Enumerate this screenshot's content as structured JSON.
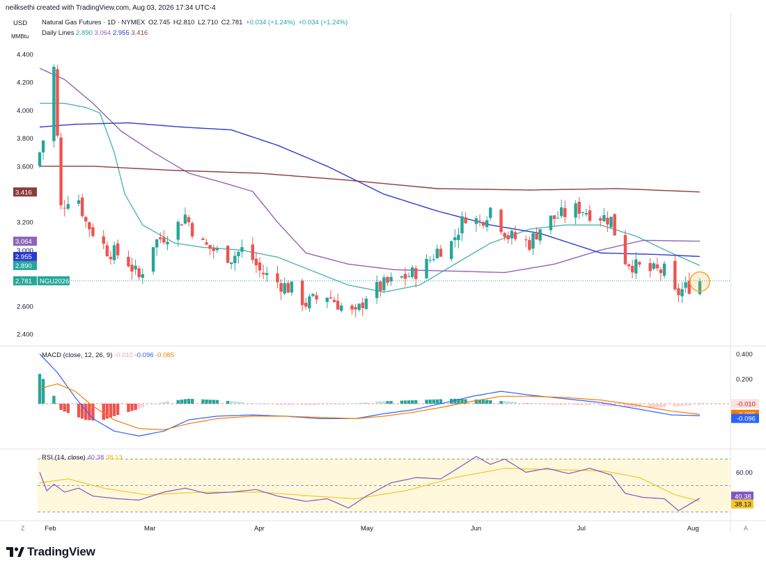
{
  "header": {
    "credit": "neilksethi created with TradingView.com, Aug 03, 2026 17:34 UTC-4",
    "currency": "USD",
    "unit": "MMBtu",
    "brand": "TradingView",
    "corner_left": "Z",
    "corner_right": "A"
  },
  "ticker": {
    "name": "Natural Gas Futures · 1D · NYMEX",
    "open": "O2.745",
    "high": "H2.810",
    "low": "L2.710",
    "close": "C2.781",
    "change": "+0.034 (+1.24%)",
    "change2": "+0.034 (+1.24%)",
    "ma_label": "Daily Lines",
    "ma_values": [
      "2.890",
      "3.064",
      "2.955",
      "3.416"
    ]
  },
  "colors": {
    "up": "#26a69a",
    "down": "#ef5350",
    "ma_teal": "#4db6ac",
    "ma_purple": "#8e63b8",
    "ma_blue": "#2b3ad1",
    "ma_maroon": "#8b3a3a",
    "macd_line": "#2962ff",
    "signal_line": "#f57c00",
    "rsi_line": "#7e57c2",
    "rsi_ma": "#f5c52a",
    "rsi_band": "#fff8dc",
    "highlight": "#f7a530"
  },
  "chart_data": [
    {
      "type": "candlestick",
      "title": "Natural Gas Futures · 1D · NYMEX",
      "ylim": [
        2.35,
        4.45
      ],
      "y_ticks": [
        "4.400",
        "4.200",
        "4.000",
        "3.800",
        "3.600",
        "3.200",
        "3.000",
        "2.600",
        "2.400"
      ],
      "x_ticks": [
        "Feb",
        "Mar",
        "Apr",
        "May",
        "Jun",
        "Jul",
        "Aug"
      ],
      "x_tick_dates": [
        "2026-02-01",
        "2026-03-01",
        "2026-04-01",
        "2026-05-01",
        "2026-06-01",
        "2026-07-01",
        "2026-08-01"
      ],
      "date_range": [
        "2026-01-29",
        "2026-08-03"
      ],
      "last_price": 2.781,
      "price_labels": [
        {
          "text": "3.416",
          "value": 3.416,
          "color": "#8b3a3a"
        },
        {
          "text": "3.064",
          "value": 3.064,
          "color": "#8e63b8"
        },
        {
          "text": "2.955",
          "value": 2.955,
          "color": "#2b3ad1"
        },
        {
          "text": "2.890",
          "value": 2.89,
          "color": "#26a69a"
        },
        {
          "text": "2.781",
          "value": 2.781,
          "color": "#26a69a"
        }
      ],
      "last_symbol": "NGU2026",
      "anchors": [
        [
          "2026-01-29",
          3.7
        ],
        [
          "2026-01-31",
          3.88
        ],
        [
          "2026-02-02",
          4.3
        ],
        [
          "2026-02-04",
          3.3
        ],
        [
          "2026-02-08",
          3.45
        ],
        [
          "2026-02-11",
          3.2
        ],
        [
          "2026-02-17",
          3.0
        ],
        [
          "2026-02-22",
          2.95
        ],
        [
          "2026-02-26",
          2.8
        ],
        [
          "2026-03-02",
          3.05
        ],
        [
          "2026-03-08",
          3.15
        ],
        [
          "2026-03-11",
          3.25
        ],
        [
          "2026-03-15",
          3.05
        ],
        [
          "2026-03-19",
          3.0
        ],
        [
          "2026-03-24",
          2.95
        ],
        [
          "2026-03-28",
          3.02
        ],
        [
          "2026-04-01",
          2.85
        ],
        [
          "2026-04-06",
          2.77
        ],
        [
          "2026-04-10",
          2.72
        ],
        [
          "2026-04-14",
          2.62
        ],
        [
          "2026-04-20",
          2.68
        ],
        [
          "2026-04-24",
          2.6
        ],
        [
          "2026-04-28",
          2.53
        ],
        [
          "2026-05-01",
          2.68
        ],
        [
          "2026-05-06",
          2.75
        ],
        [
          "2026-05-11",
          2.8
        ],
        [
          "2026-05-14",
          2.83
        ],
        [
          "2026-05-18",
          2.9
        ],
        [
          "2026-05-21",
          3.0
        ],
        [
          "2026-05-25",
          3.05
        ],
        [
          "2026-05-29",
          3.25
        ],
        [
          "2026-06-02",
          3.2
        ],
        [
          "2026-06-05",
          3.3
        ],
        [
          "2026-06-10",
          3.1
        ],
        [
          "2026-06-16",
          3.05
        ],
        [
          "2026-06-20",
          3.2
        ],
        [
          "2026-06-25",
          3.25
        ],
        [
          "2026-06-30",
          3.3
        ],
        [
          "2026-07-05",
          3.25
        ],
        [
          "2026-07-09",
          3.22
        ],
        [
          "2026-07-12",
          2.95
        ],
        [
          "2026-07-16",
          2.88
        ],
        [
          "2026-07-20",
          2.85
        ],
        [
          "2026-07-24",
          2.85
        ],
        [
          "2026-07-27",
          2.68
        ],
        [
          "2026-07-30",
          2.73
        ],
        [
          "2026-08-03",
          2.781
        ]
      ],
      "series": [
        {
          "name": "Daily Lines 2.890",
          "color": "#4db6ac",
          "points": [
            [
              "2026-01-29",
              4.05
            ],
            [
              "2026-02-05",
              4.05
            ],
            [
              "2026-02-11",
              4.02
            ],
            [
              "2026-02-15",
              3.98
            ],
            [
              "2026-02-19",
              3.7
            ],
            [
              "2026-02-22",
              3.4
            ],
            [
              "2026-02-27",
              3.18
            ],
            [
              "2026-03-08",
              3.05
            ],
            [
              "2026-03-16",
              3.02
            ],
            [
              "2026-03-27",
              3.0
            ],
            [
              "2026-04-06",
              2.95
            ],
            [
              "2026-04-16",
              2.85
            ],
            [
              "2026-04-26",
              2.75
            ],
            [
              "2026-05-06",
              2.7
            ],
            [
              "2026-05-16",
              2.75
            ],
            [
              "2026-05-26",
              2.9
            ],
            [
              "2026-06-05",
              3.05
            ],
            [
              "2026-06-16",
              3.15
            ],
            [
              "2026-06-26",
              3.18
            ],
            [
              "2026-07-06",
              3.18
            ],
            [
              "2026-07-16",
              3.1
            ],
            [
              "2026-07-26",
              2.98
            ],
            [
              "2026-08-03",
              2.89
            ]
          ]
        },
        {
          "name": "Daily Lines 3.064",
          "color": "#8e63b8",
          "points": [
            [
              "2026-01-29",
              4.3
            ],
            [
              "2026-02-05",
              4.22
            ],
            [
              "2026-02-13",
              4.05
            ],
            [
              "2026-02-21",
              3.85
            ],
            [
              "2026-03-02",
              3.7
            ],
            [
              "2026-03-12",
              3.55
            ],
            [
              "2026-03-22",
              3.48
            ],
            [
              "2026-03-30",
              3.42
            ],
            [
              "2026-04-06",
              3.2
            ],
            [
              "2026-04-14",
              2.98
            ],
            [
              "2026-04-26",
              2.9
            ],
            [
              "2026-05-09",
              2.86
            ],
            [
              "2026-05-26",
              2.85
            ],
            [
              "2026-06-09",
              2.84
            ],
            [
              "2026-06-23",
              2.9
            ],
            [
              "2026-07-06",
              3.0
            ],
            [
              "2026-07-18",
              3.07
            ],
            [
              "2026-08-03",
              3.064
            ]
          ]
        },
        {
          "name": "Daily Lines 2.955",
          "color": "#2b3ad1",
          "points": [
            [
              "2026-01-29",
              3.88
            ],
            [
              "2026-02-08",
              3.9
            ],
            [
              "2026-02-23",
              3.91
            ],
            [
              "2026-03-10",
              3.88
            ],
            [
              "2026-03-24",
              3.86
            ],
            [
              "2026-04-06",
              3.75
            ],
            [
              "2026-04-20",
              3.6
            ],
            [
              "2026-05-06",
              3.4
            ],
            [
              "2026-05-21",
              3.28
            ],
            [
              "2026-06-05",
              3.18
            ],
            [
              "2026-06-19",
              3.12
            ],
            [
              "2026-07-06",
              2.98
            ],
            [
              "2026-07-21",
              2.97
            ],
            [
              "2026-08-03",
              2.955
            ]
          ]
        },
        {
          "name": "Daily Lines 3.416",
          "color": "#8b3a3a",
          "points": [
            [
              "2026-01-29",
              3.6
            ],
            [
              "2026-02-13",
              3.6
            ],
            [
              "2026-03-08",
              3.57
            ],
            [
              "2026-04-01",
              3.55
            ],
            [
              "2026-04-26",
              3.5
            ],
            [
              "2026-05-21",
              3.44
            ],
            [
              "2026-06-16",
              3.43
            ],
            [
              "2026-07-11",
              3.44
            ],
            [
              "2026-08-03",
              3.416
            ]
          ]
        }
      ]
    },
    {
      "type": "macd",
      "title": "MACD (close, 12, 26, 9)",
      "values_label": [
        "-0.010",
        "-0.096",
        "-0.085"
      ],
      "ylim": [
        -0.28,
        0.42
      ],
      "y_ticks": [
        "0.400",
        "0.200"
      ],
      "price_labels": [
        {
          "text": "-0.010",
          "value": -0.01,
          "color": "#fde2e2",
          "fg": "#b22222"
        },
        {
          "text": "-0.085",
          "value": -0.085,
          "color": "#f57c00",
          "fg": "#ffffff"
        },
        {
          "text": "-0.096",
          "value": -0.096,
          "color": "#2962ff",
          "fg": "#ffffff"
        }
      ],
      "macd": [
        [
          "2026-01-29",
          0.4
        ],
        [
          "2026-02-03",
          0.25
        ],
        [
          "2026-02-08",
          0.05
        ],
        [
          "2026-02-13",
          -0.12
        ],
        [
          "2026-02-19",
          -0.22
        ],
        [
          "2026-02-26",
          -0.26
        ],
        [
          "2026-03-05",
          -0.22
        ],
        [
          "2026-03-12",
          -0.13
        ],
        [
          "2026-03-20",
          -0.1
        ],
        [
          "2026-03-30",
          -0.09
        ],
        [
          "2026-04-08",
          -0.1
        ],
        [
          "2026-04-18",
          -0.12
        ],
        [
          "2026-04-28",
          -0.12
        ],
        [
          "2026-05-06",
          -0.08
        ],
        [
          "2026-05-14",
          -0.05
        ],
        [
          "2026-05-22",
          0.0
        ],
        [
          "2026-05-31",
          0.06
        ],
        [
          "2026-06-08",
          0.1
        ],
        [
          "2026-06-16",
          0.07
        ],
        [
          "2026-06-26",
          0.04
        ],
        [
          "2026-07-06",
          0.01
        ],
        [
          "2026-07-16",
          -0.04
        ],
        [
          "2026-07-26",
          -0.09
        ],
        [
          "2026-08-03",
          -0.096
        ]
      ],
      "signal": [
        [
          "2026-01-29",
          0.12
        ],
        [
          "2026-02-03",
          0.16
        ],
        [
          "2026-02-08",
          0.1
        ],
        [
          "2026-02-13",
          -0.02
        ],
        [
          "2026-02-19",
          -0.13
        ],
        [
          "2026-02-26",
          -0.2
        ],
        [
          "2026-03-05",
          -0.21
        ],
        [
          "2026-03-12",
          -0.16
        ],
        [
          "2026-03-20",
          -0.12
        ],
        [
          "2026-03-30",
          -0.1
        ],
        [
          "2026-04-08",
          -0.1
        ],
        [
          "2026-04-18",
          -0.11
        ],
        [
          "2026-04-28",
          -0.12
        ],
        [
          "2026-05-06",
          -0.1
        ],
        [
          "2026-05-14",
          -0.07
        ],
        [
          "2026-05-22",
          -0.03
        ],
        [
          "2026-05-31",
          0.02
        ],
        [
          "2026-06-08",
          0.06
        ],
        [
          "2026-06-16",
          0.06
        ],
        [
          "2026-06-26",
          0.05
        ],
        [
          "2026-07-06",
          0.03
        ],
        [
          "2026-07-16",
          -0.01
        ],
        [
          "2026-07-26",
          -0.06
        ],
        [
          "2026-08-03",
          -0.085
        ]
      ],
      "histogram": [
        [
          "2026-01-29",
          0.24
        ],
        [
          "2026-02-01",
          0.12
        ],
        [
          "2026-02-04",
          -0.05
        ],
        [
          "2026-02-08",
          -0.1
        ],
        [
          "2026-02-11",
          -0.13
        ],
        [
          "2026-02-15",
          -0.14
        ],
        [
          "2026-02-20",
          -0.09
        ],
        [
          "2026-02-25",
          -0.05
        ],
        [
          "2026-03-01",
          -0.01
        ],
        [
          "2026-03-06",
          0.02
        ],
        [
          "2026-03-12",
          0.04
        ],
        [
          "2026-03-20",
          0.03
        ],
        [
          "2026-03-28",
          0.01
        ],
        [
          "2026-04-06",
          -0.01
        ],
        [
          "2026-04-16",
          -0.01
        ],
        [
          "2026-04-26",
          0.0
        ],
        [
          "2026-05-06",
          0.02
        ],
        [
          "2026-05-16",
          0.03
        ],
        [
          "2026-05-26",
          0.04
        ],
        [
          "2026-06-04",
          0.03
        ],
        [
          "2026-06-14",
          0.01
        ],
        [
          "2026-06-24",
          -0.01
        ],
        [
          "2026-07-04",
          -0.01
        ],
        [
          "2026-07-14",
          -0.03
        ],
        [
          "2026-07-22",
          -0.03
        ],
        [
          "2026-07-28",
          -0.02
        ],
        [
          "2026-08-03",
          -0.01
        ]
      ]
    },
    {
      "type": "rsi",
      "title": "RSI (14, close)",
      "values_label": [
        "40.38",
        "38.13"
      ],
      "ylim": [
        25,
        75
      ],
      "band": [
        30,
        70
      ],
      "y_ticks": [
        "60.00"
      ],
      "price_labels": [
        {
          "text": "40.38",
          "value": 40.38,
          "color": "#7e57c2",
          "fg": "#ffffff"
        },
        {
          "text": "38.13",
          "value": 38.13,
          "color": "#f5c52a",
          "fg": "#131722"
        }
      ],
      "rsi": [
        [
          "2026-01-29",
          60
        ],
        [
          "2026-01-31",
          46
        ],
        [
          "2026-02-02",
          51
        ],
        [
          "2026-02-05",
          45
        ],
        [
          "2026-02-09",
          48
        ],
        [
          "2026-02-13",
          42
        ],
        [
          "2026-02-20",
          40
        ],
        [
          "2026-02-26",
          39
        ],
        [
          "2026-03-05",
          45
        ],
        [
          "2026-03-11",
          48
        ],
        [
          "2026-03-17",
          44
        ],
        [
          "2026-03-24",
          45
        ],
        [
          "2026-03-31",
          47
        ],
        [
          "2026-04-06",
          42
        ],
        [
          "2026-04-14",
          38
        ],
        [
          "2026-04-20",
          40
        ],
        [
          "2026-04-26",
          33
        ],
        [
          "2026-05-01",
          42
        ],
        [
          "2026-05-08",
          52
        ],
        [
          "2026-05-15",
          56
        ],
        [
          "2026-05-22",
          55
        ],
        [
          "2026-05-28",
          65
        ],
        [
          "2026-06-01",
          72
        ],
        [
          "2026-06-05",
          66
        ],
        [
          "2026-06-09",
          70
        ],
        [
          "2026-06-15",
          60
        ],
        [
          "2026-06-21",
          63
        ],
        [
          "2026-06-27",
          59
        ],
        [
          "2026-07-03",
          63
        ],
        [
          "2026-07-09",
          58
        ],
        [
          "2026-07-13",
          44
        ],
        [
          "2026-07-18",
          41
        ],
        [
          "2026-07-24",
          40
        ],
        [
          "2026-07-28",
          31
        ],
        [
          "2026-08-03",
          40.38
        ]
      ],
      "rsi_ma": [
        [
          "2026-01-29",
          52
        ],
        [
          "2026-02-06",
          55
        ],
        [
          "2026-02-16",
          48
        ],
        [
          "2026-02-28",
          43
        ],
        [
          "2026-03-16",
          45
        ],
        [
          "2026-04-01",
          45
        ],
        [
          "2026-04-16",
          42
        ],
        [
          "2026-04-28",
          40
        ],
        [
          "2026-05-12",
          46
        ],
        [
          "2026-05-26",
          56
        ],
        [
          "2026-06-09",
          63
        ],
        [
          "2026-06-23",
          62
        ],
        [
          "2026-07-07",
          61
        ],
        [
          "2026-07-17",
          56
        ],
        [
          "2026-07-27",
          43
        ],
        [
          "2026-08-03",
          38.13
        ]
      ]
    }
  ]
}
